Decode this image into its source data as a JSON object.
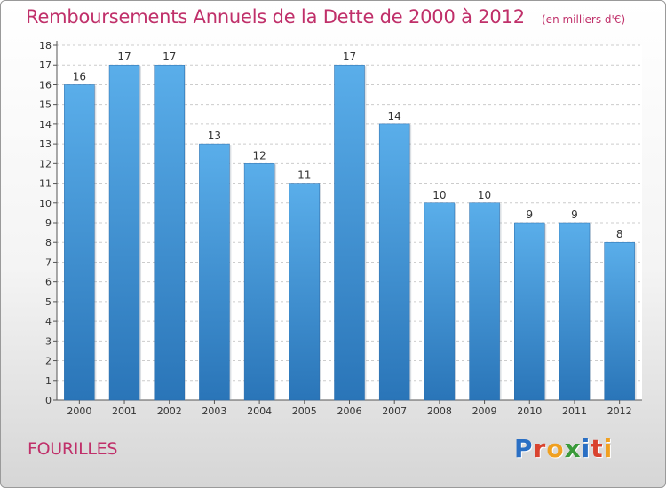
{
  "title": "Remboursements Annuels de la Dette de 2000 à 2012",
  "unit": "(en milliers d'€)",
  "commune": "FOURILLES",
  "logo": {
    "text": "Proxiti",
    "letters": [
      {
        "ch": "P",
        "color": "#2a6fc4"
      },
      {
        "ch": "r",
        "color": "#d9432f"
      },
      {
        "ch": "o",
        "color": "#f0a020"
      },
      {
        "ch": "x",
        "color": "#3a9a3a"
      },
      {
        "ch": "i",
        "color": "#2a6fc4"
      },
      {
        "ch": "t",
        "color": "#d9432f"
      },
      {
        "ch": "i",
        "color": "#f0a020"
      }
    ]
  },
  "colors": {
    "title": "#c0306a",
    "bar_top": "#5aaeea",
    "bar_bottom": "#2a75b8",
    "grid": "#cccccc"
  },
  "chart_data": {
    "type": "bar",
    "categories": [
      "2000",
      "2001",
      "2002",
      "2003",
      "2004",
      "2005",
      "2006",
      "2007",
      "2008",
      "2009",
      "2010",
      "2011",
      "2012"
    ],
    "values": [
      16,
      17,
      17,
      13,
      12,
      11,
      17,
      14,
      10,
      10,
      9,
      9,
      8
    ],
    "ylim": [
      0,
      18
    ],
    "yticks": [
      0,
      1,
      2,
      3,
      4,
      5,
      6,
      7,
      8,
      9,
      10,
      11,
      12,
      13,
      14,
      15,
      16,
      17,
      18
    ],
    "grid": "horizontal dashed"
  }
}
